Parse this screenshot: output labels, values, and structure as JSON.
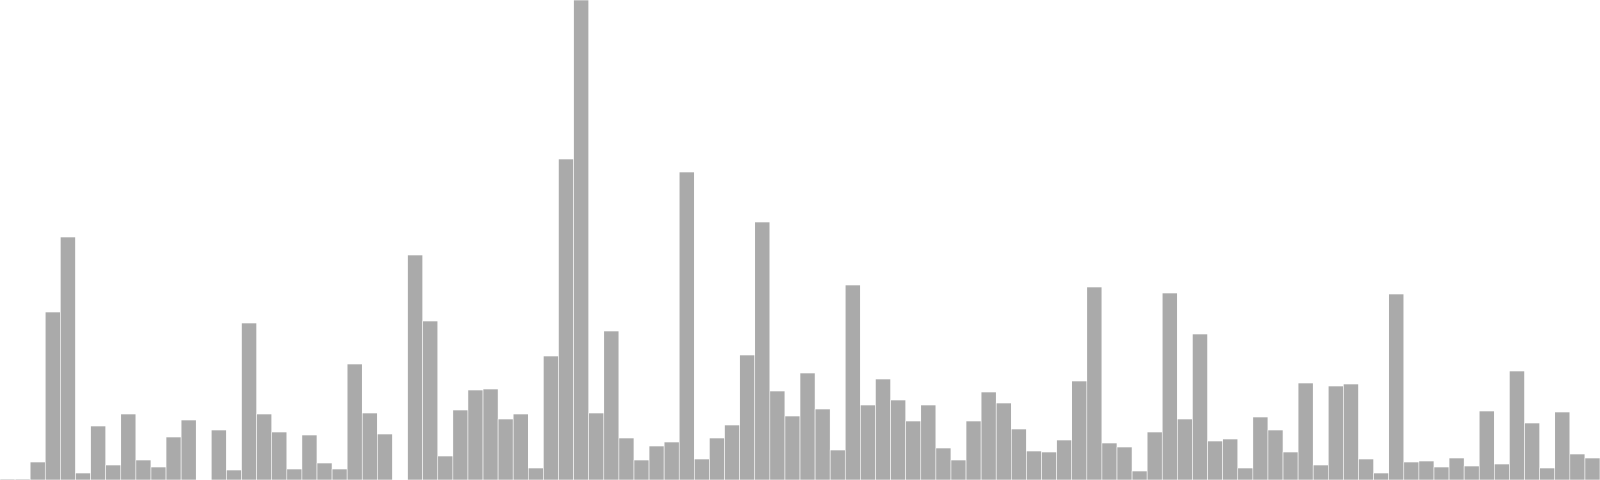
{
  "chart_data": {
    "type": "bar",
    "title": "",
    "xlabel": "",
    "ylabel": "",
    "grid": false,
    "bar_color": "#aaaaaa",
    "ylim": [
      0,
      480
    ],
    "values": [
      1,
      1,
      18,
      168,
      243,
      7,
      54,
      15,
      66,
      20,
      13,
      43,
      60,
      0,
      50,
      10,
      157,
      66,
      48,
      11,
      45,
      17,
      11,
      116,
      67,
      46,
      0,
      225,
      159,
      24,
      70,
      90,
      91,
      61,
      66,
      12,
      124,
      321,
      480,
      67,
      149,
      42,
      20,
      34,
      38,
      308,
      21,
      42,
      55,
      125,
      258,
      89,
      64,
      107,
      71,
      30,
      195,
      75,
      101,
      80,
      59,
      75,
      32,
      20,
      59,
      88,
      77,
      51,
      29,
      28,
      40,
      99,
      193,
      37,
      33,
      9,
      48,
      187,
      61,
      146,
      39,
      41,
      12,
      63,
      50,
      28,
      97,
      15,
      94,
      96,
      21,
      7,
      186,
      18,
      19,
      13,
      22,
      14,
      69,
      16,
      109,
      57,
      12,
      68,
      26,
      22
    ]
  }
}
